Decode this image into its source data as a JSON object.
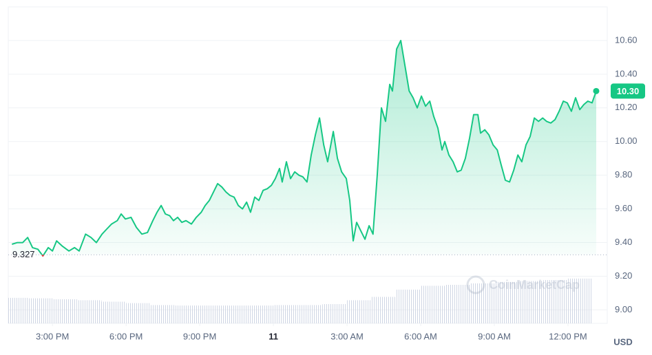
{
  "chart_data": {
    "type": "line",
    "currency": "USD",
    "watermark": "CoinMarketCap",
    "xlim": [
      -1.8,
      22.6
    ],
    "xticks": [
      {
        "value": 0,
        "label": "3:00 PM"
      },
      {
        "value": 3,
        "label": "6:00 PM"
      },
      {
        "value": 6,
        "label": "9:00 PM"
      },
      {
        "value": 9,
        "label": "11"
      },
      {
        "value": 12,
        "label": "3:00 AM"
      },
      {
        "value": 15,
        "label": "6:00 AM"
      },
      {
        "value": 18,
        "label": "9:00 AM"
      },
      {
        "value": 21,
        "label": "12:00 PM"
      }
    ],
    "ylim": [
      8.92,
      10.8
    ],
    "yticks": [
      {
        "value": 9,
        "label": "9.00"
      },
      {
        "value": 9.2,
        "label": "9.20"
      },
      {
        "value": 9.4,
        "label": "9.40"
      },
      {
        "value": 9.6,
        "label": "9.60"
      },
      {
        "value": 9.8,
        "label": "9.80"
      },
      {
        "value": 10,
        "label": "10.00"
      },
      {
        "value": 10.2,
        "label": "10.20"
      },
      {
        "value": 10.4,
        "label": "10.40"
      },
      {
        "value": 10.6,
        "label": "10.60"
      }
    ],
    "grid": true,
    "baseline": 9.327,
    "last_price": {
      "value": 10.3,
      "label": "10.30"
    },
    "up_color": "#16c784",
    "down_color": "#ea3943",
    "series": [
      {
        "x": [
          -1.65,
          -1.43,
          -1.21,
          -1.01,
          -0.81,
          -0.59,
          -0.39,
          -0.17,
          0,
          0.17,
          0.39,
          0.67,
          0.9,
          1.09,
          1.35,
          1.57,
          1.79,
          2.02,
          2.21,
          2.41,
          2.64,
          2.8,
          2.97,
          3.2,
          3.42,
          3.64,
          3.87,
          4.09,
          4.26,
          4.43,
          4.6,
          4.77,
          4.93,
          5.1,
          5.27,
          5.44,
          5.66,
          5.86,
          6.06,
          6.22,
          6.39,
          6.56,
          6.73,
          6.9,
          7.07,
          7.23,
          7.4,
          7.57,
          7.74,
          7.91,
          8.07,
          8.24,
          8.41,
          8.58,
          8.75,
          8.92,
          9.08,
          9.25,
          9.36,
          9.53,
          9.7,
          9.87,
          10.04,
          10.2,
          10.37,
          10.54,
          10.71,
          10.88,
          11.05,
          11.21,
          11.44,
          11.61,
          11.78,
          11.97,
          12.11,
          12.25,
          12.39,
          12.56,
          12.73,
          12.9,
          13.06,
          13.23,
          13.4,
          13.57,
          13.74,
          13.85,
          14.02,
          14.19,
          14.36,
          14.53,
          14.69,
          14.86,
          15.03,
          15.2,
          15.37,
          15.53,
          15.7,
          15.87,
          15.98,
          16.15,
          16.32,
          16.49,
          16.65,
          16.82,
          16.99,
          17.16,
          17.33,
          17.44,
          17.61,
          17.78,
          17.95,
          18.12,
          18.28,
          18.45,
          18.62,
          18.79,
          18.96,
          19.12,
          19.29,
          19.46,
          19.63,
          19.8,
          19.97,
          20.13,
          20.3,
          20.47,
          20.64,
          20.81,
          20.97,
          21.14,
          21.31,
          21.48,
          21.65,
          21.81,
          21.98,
          22.15
        ],
        "values": [
          9.39,
          9.4,
          9.4,
          9.43,
          9.37,
          9.36,
          9.32,
          9.37,
          9.35,
          9.41,
          9.38,
          9.35,
          9.37,
          9.35,
          9.45,
          9.43,
          9.4,
          9.45,
          9.48,
          9.51,
          9.53,
          9.57,
          9.54,
          9.55,
          9.49,
          9.45,
          9.46,
          9.53,
          9.58,
          9.62,
          9.57,
          9.56,
          9.53,
          9.55,
          9.52,
          9.53,
          9.51,
          9.55,
          9.58,
          9.62,
          9.65,
          9.7,
          9.75,
          9.73,
          9.7,
          9.68,
          9.67,
          9.62,
          9.6,
          9.64,
          9.58,
          9.67,
          9.65,
          9.71,
          9.72,
          9.74,
          9.78,
          9.84,
          9.76,
          9.88,
          9.78,
          9.82,
          9.8,
          9.79,
          9.76,
          9.92,
          10.04,
          10.14,
          9.98,
          9.88,
          10.06,
          9.9,
          9.82,
          9.78,
          9.65,
          9.41,
          9.52,
          9.47,
          9.42,
          9.5,
          9.45,
          9.8,
          10.2,
          10.12,
          10.34,
          10.3,
          10.55,
          10.6,
          10.45,
          10.3,
          10.26,
          10.2,
          10.27,
          10.21,
          10.24,
          10.15,
          10.08,
          9.95,
          10,
          9.92,
          9.88,
          9.82,
          9.83,
          9.9,
          10.02,
          10.16,
          10.16,
          10.05,
          10.07,
          10.04,
          9.98,
          9.95,
          9.86,
          9.77,
          9.76,
          9.83,
          9.92,
          9.88,
          9.98,
          10.03,
          10.14,
          10.12,
          10.14,
          10.12,
          10.11,
          10.13,
          10.18,
          10.24,
          10.23,
          10.18,
          10.26,
          10.19,
          10.22,
          10.24,
          10.23,
          10.3
        ]
      }
    ],
    "volume": {
      "vlim": [
        0,
        100
      ],
      "x": [
        -1.5,
        -0.5,
        0.5,
        1.5,
        2.5,
        3.5,
        4.5,
        5.5,
        6.5,
        7.5,
        8.5,
        9.5,
        10.5,
        11.5,
        12.5,
        13.5,
        14.5,
        15.5,
        16.5,
        17.5,
        18.5,
        19.5,
        20.5,
        21.5
      ],
      "values": [
        53,
        52,
        50,
        48,
        45,
        42,
        38,
        37,
        37,
        37,
        37,
        38,
        38,
        40,
        48,
        55,
        70,
        78,
        80,
        83,
        86,
        88,
        90,
        93
      ],
      "color": "#d5d9e0"
    }
  }
}
